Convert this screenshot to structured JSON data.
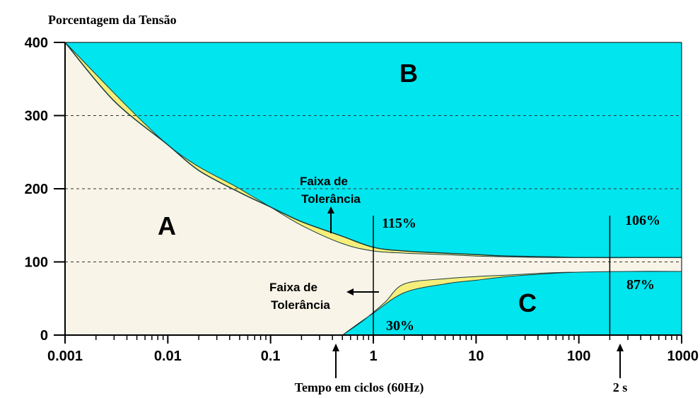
{
  "chart_data": {
    "type": "area",
    "title": "Porcentagem da Tensão",
    "xlabel": "Tempo em ciclos (60Hz)",
    "ylabel": "",
    "x_scale": "log",
    "xlim": [
      0.001,
      1000
    ],
    "ylim": [
      0,
      400
    ],
    "x_ticks": [
      "0.001",
      "0.01",
      "0.1",
      "1",
      "10",
      "100",
      "1000"
    ],
    "y_ticks": [
      "400",
      "300",
      "200",
      "100",
      "0"
    ],
    "y_gridlines": [
      100,
      200,
      300
    ],
    "regions": [
      {
        "name": "A",
        "label": "A",
        "color": "#f9f4e8"
      },
      {
        "name": "B",
        "label": "B",
        "color": "#00e5ee"
      },
      {
        "name": "C",
        "label": "C",
        "color": "#00e5ee"
      }
    ],
    "band_color": "#f5ee7a",
    "series": [
      {
        "x": [
          0.001,
          0.003,
          0.01,
          0.02,
          0.05,
          0.1,
          0.2,
          0.5,
          1,
          2,
          5,
          10,
          20,
          50,
          100,
          300,
          1000
        ],
        "y": [
          400,
          320,
          260,
          225,
          195,
          175,
          155,
          135,
          120,
          115,
          112,
          110,
          108,
          107,
          106,
          106,
          106
        ]
      },
      {
        "x": [
          0.001,
          0.01,
          0.05,
          0.1,
          0.2,
          0.5,
          1,
          2,
          5,
          10,
          20,
          50,
          100,
          300,
          1000
        ],
        "y": [
          400,
          260,
          200,
          175,
          150,
          125,
          115,
          112,
          110,
          108,
          107,
          106,
          106,
          106,
          106
        ]
      },
      {
        "x": [
          0.5,
          0.7,
          1,
          2,
          5,
          10,
          20,
          50,
          100,
          300,
          1000
        ],
        "y": [
          0,
          15,
          30,
          58,
          70,
          75,
          80,
          84,
          86,
          87,
          87
        ]
      },
      {
        "x": [
          0.5,
          0.8,
          1.3,
          2,
          5,
          10,
          20,
          50,
          100,
          300,
          1000
        ],
        "y": [
          0,
          20,
          45,
          70,
          77,
          80,
          82,
          85,
          86,
          87,
          87
        ]
      }
    ],
    "vertical_markers": [
      {
        "x": 1
      },
      {
        "x": 200
      }
    ],
    "annotations": {
      "upper_band_label": [
        "Faixa de",
        "Tolerância"
      ],
      "lower_band_label": [
        "Faixa de",
        "Tolerância"
      ],
      "pct_115": "115%",
      "pct_106": "106%",
      "pct_87": "87%",
      "pct_30": "30%",
      "marker_2s": "2 s"
    }
  }
}
